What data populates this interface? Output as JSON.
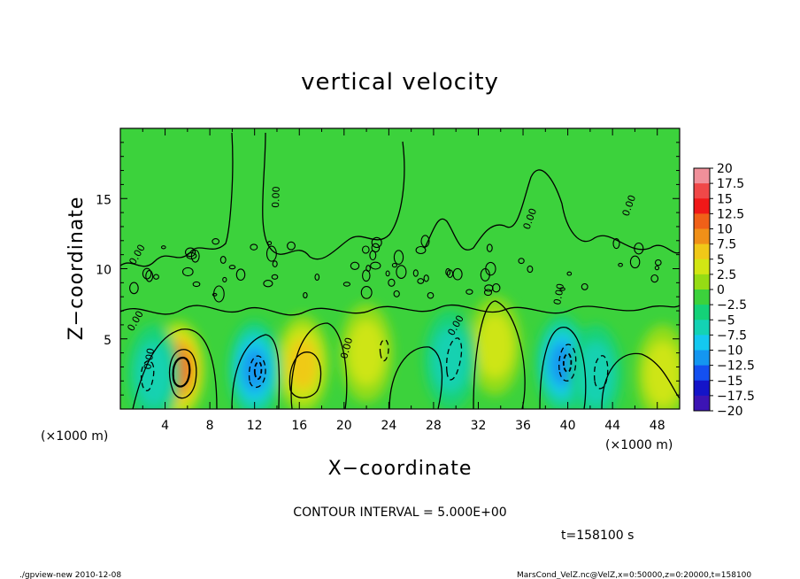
{
  "chart_data": {
    "type": "heatmap",
    "title": "vertical velocity",
    "xlabel": "X−coordinate",
    "ylabel": "Z−coordinate",
    "x_unit_left": "(×1000 m)",
    "x_unit_right": "(×1000 m)",
    "xlim": [
      0,
      50
    ],
    "ylim": [
      0,
      20
    ],
    "x_ticks": [
      4,
      8,
      12,
      16,
      20,
      24,
      28,
      32,
      36,
      40,
      44,
      48
    ],
    "y_ticks": [
      5,
      10,
      15
    ],
    "contour_interval_text": "CONTOUR INTERVAL = 5.000E+00",
    "time_text": "t=158100 s",
    "colorbar": {
      "levels": [
        "20",
        "17.5",
        "15",
        "12.5",
        "10",
        "7.5",
        "5",
        "2.5",
        "0",
        "−2.5",
        "−5",
        "−7.5",
        "−10",
        "−12.5",
        "−15",
        "−17.5",
        "−20"
      ],
      "colors": [
        "#f0909a",
        "#f04848",
        "#f01818",
        "#f06018",
        "#f09018",
        "#f0c818",
        "#d2e614",
        "#96dc14",
        "#3cd23c",
        "#14d278",
        "#14d2b4",
        "#14c8f0",
        "#1496f0",
        "#1450f0",
        "#1414c8",
        "#3c14b4",
        "#7814b4"
      ]
    },
    "features": [
      {
        "x": 5.2,
        "z": 2.8,
        "value": 13,
        "label": "updraft"
      },
      {
        "x": 16.3,
        "z": 3.2,
        "value": 7.5,
        "label": "updraft"
      },
      {
        "x": 33.5,
        "z": 4.5,
        "value": 6,
        "label": "updraft"
      },
      {
        "x": 22,
        "z": 4,
        "value": 4,
        "label": "updraft"
      },
      {
        "x": 48.5,
        "z": 2.5,
        "value": 5,
        "label": "updraft"
      },
      {
        "x": 12,
        "z": 2.8,
        "value": -9,
        "label": "downdraft"
      },
      {
        "x": 39.5,
        "z": 3.2,
        "value": -10,
        "label": "downdraft"
      },
      {
        "x": 29.5,
        "z": 3.5,
        "value": -6,
        "label": "downdraft"
      },
      {
        "x": 3,
        "z": 2.5,
        "value": -4,
        "label": "downdraft"
      },
      {
        "x": 42.5,
        "z": 2.5,
        "value": -5,
        "label": "downdraft"
      }
    ]
  },
  "footer": {
    "left": "./gpview-new  2010-12-08",
    "right": "MarsCond_VelZ.nc@VelZ,x=0:50000,z=0:20000,t=158100"
  }
}
